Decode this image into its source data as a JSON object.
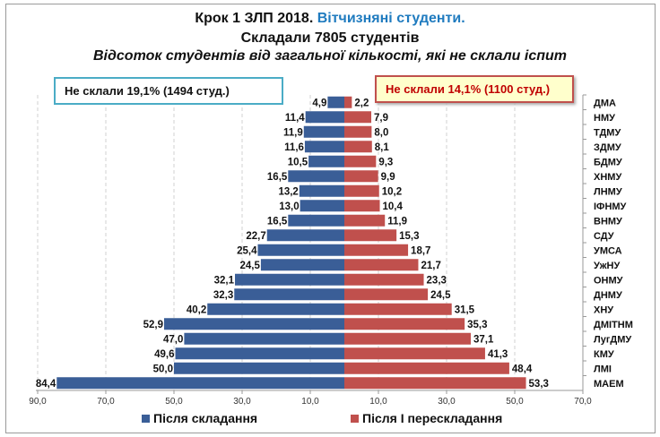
{
  "title": {
    "part1": "Крок 1 ЗЛП 2018. ",
    "part2": "Вітчизняні студенти.",
    "line2": "Складали 7805 студентів",
    "line3": "Відсоток студентів від загальної кількості, які не склали іспит"
  },
  "annotations": {
    "left": "Не склали 19,1% (1494 студ.)",
    "right": "Не склали  14,1% (1100 студ.)"
  },
  "chart_data": {
    "type": "bar",
    "orientation": "horizontal-back-to-back",
    "categories": [
      "ДМА",
      "НМУ",
      "ТДМУ",
      "ЗДМУ",
      "БДМУ",
      "ХНМУ",
      "ЛНМУ",
      "ІФНМУ",
      "ВНМУ",
      "СДУ",
      "УМСА",
      "УжНУ",
      "ОНМУ",
      "ДНМУ",
      "ХНУ",
      "ДМІТНМ",
      "ЛугДМУ",
      "КМУ",
      "ЛМІ",
      "МАЕМ"
    ],
    "series": [
      {
        "name": "Після складання",
        "side": "left",
        "color": "#3a5e97",
        "values": [
          4.9,
          11.4,
          11.9,
          11.6,
          10.5,
          16.5,
          13.2,
          13.0,
          16.5,
          22.7,
          25.4,
          24.5,
          32.1,
          32.3,
          40.2,
          52.9,
          47.0,
          49.6,
          50.0,
          84.4
        ],
        "labels": [
          "4,9",
          "11,4",
          "11,9",
          "11,6",
          "10,5",
          "16,5",
          "13,2",
          "13,0",
          "16,5",
          "22,7",
          "25,4",
          "24,5",
          "32,1",
          "32,3",
          "40,2",
          "52,9",
          "47,0",
          "49,6",
          "50,0",
          "84,4"
        ]
      },
      {
        "name": "Після І перескладання",
        "side": "right",
        "color": "#c0504d",
        "values": [
          2.2,
          7.9,
          8.0,
          8.1,
          9.3,
          9.9,
          10.2,
          10.4,
          11.9,
          15.3,
          18.7,
          21.7,
          23.3,
          24.5,
          31.5,
          35.3,
          37.1,
          41.3,
          48.4,
          53.3
        ],
        "labels": [
          "2,2",
          "7,9",
          "8,0",
          "8,1",
          "9,3",
          "9,9",
          "10,2",
          "10,4",
          "11,9",
          "15,3",
          "18,7",
          "21,7",
          "23,3",
          "24,5",
          "31,5",
          "35,3",
          "37,1",
          "41,3",
          "48,4",
          "53,3"
        ]
      }
    ],
    "xlim": [
      -90,
      70
    ],
    "xticks": [
      -90,
      -70,
      -50,
      -30,
      -10,
      10,
      30,
      50,
      70
    ],
    "xtick_labels": [
      "90,0",
      "70,0",
      "50,0",
      "30,0",
      "10,0",
      "10,0",
      "30,0",
      "50,0",
      "70,0"
    ],
    "grid": "vertical dashed",
    "legend": "bottom"
  }
}
